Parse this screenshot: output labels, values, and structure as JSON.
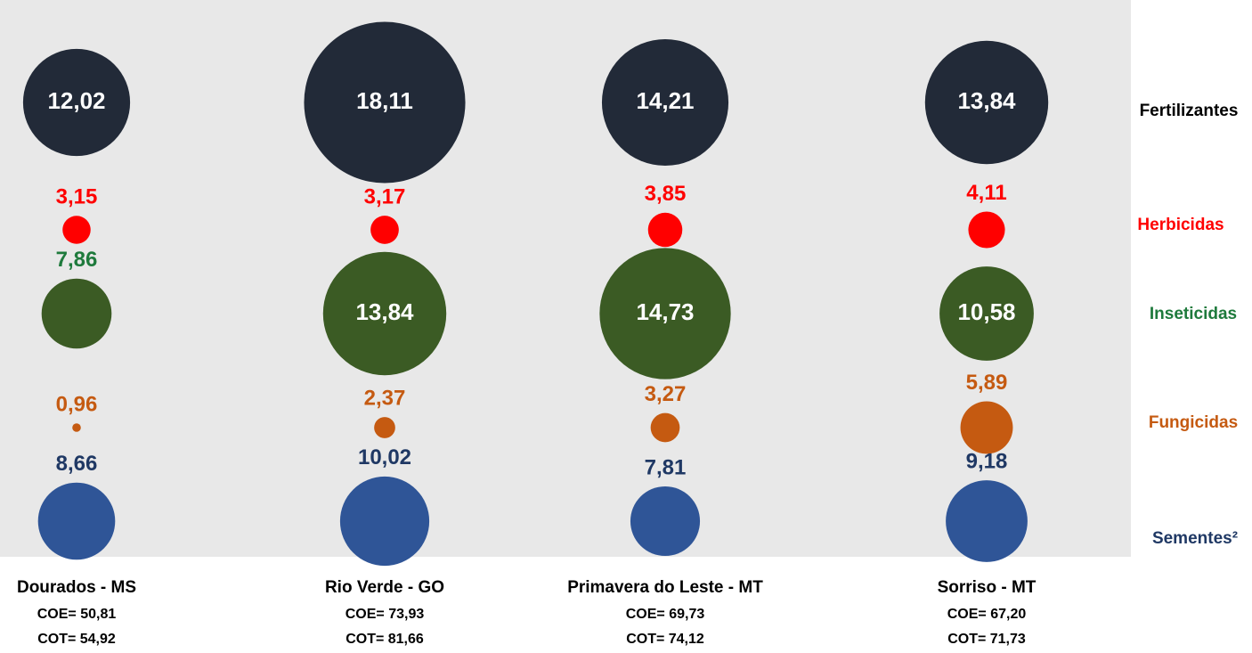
{
  "chart_data": {
    "type": "bubble",
    "categories": [
      "Dourados - MS",
      "Rio Verde - GO",
      "Primavera do Leste - MT",
      "Sorriso - MT"
    ],
    "annotations": [
      [
        "COE= 50,81",
        "COT= 54,92"
      ],
      [
        "COE= 73,93",
        "COT= 81,66"
      ],
      [
        "COE= 69,73",
        "COT= 74,12"
      ],
      [
        "COE= 67,20",
        "COT= 71,73"
      ]
    ],
    "series": [
      {
        "name": "Fertilizantes",
        "color": "#222a38",
        "label_color": "#000000",
        "values": [
          12.02,
          18.11,
          14.21,
          13.84
        ],
        "value_labels": [
          "12,02",
          "18,11",
          "14,21",
          "13,84"
        ]
      },
      {
        "name": "Herbicidas",
        "color": "#ff0000",
        "label_color": "#ff0000",
        "values": [
          3.15,
          3.17,
          3.85,
          4.11
        ],
        "value_labels": [
          "3,15",
          "3,17",
          "3,85",
          "4,11"
        ]
      },
      {
        "name": "Inseticidas",
        "color": "#3b5b24",
        "label_color": "#1e7a3c",
        "values": [
          7.86,
          13.84,
          14.73,
          10.58
        ],
        "value_labels": [
          "7,86",
          "13,84",
          "14,73",
          "10,58"
        ]
      },
      {
        "name": "Fungicidas",
        "color": "#c55a11",
        "label_color": "#c55a11",
        "values": [
          0.96,
          2.37,
          3.27,
          5.89
        ],
        "value_labels": [
          "0,96",
          "2,37",
          "3,27",
          "5,89"
        ]
      },
      {
        "name": "Sementes²",
        "color": "#2f5597",
        "label_color": "#1f3864",
        "values": [
          8.66,
          10.02,
          7.81,
          9.18
        ],
        "value_labels": [
          "8,66",
          "10,02",
          "7,81",
          "9,18"
        ]
      }
    ]
  }
}
